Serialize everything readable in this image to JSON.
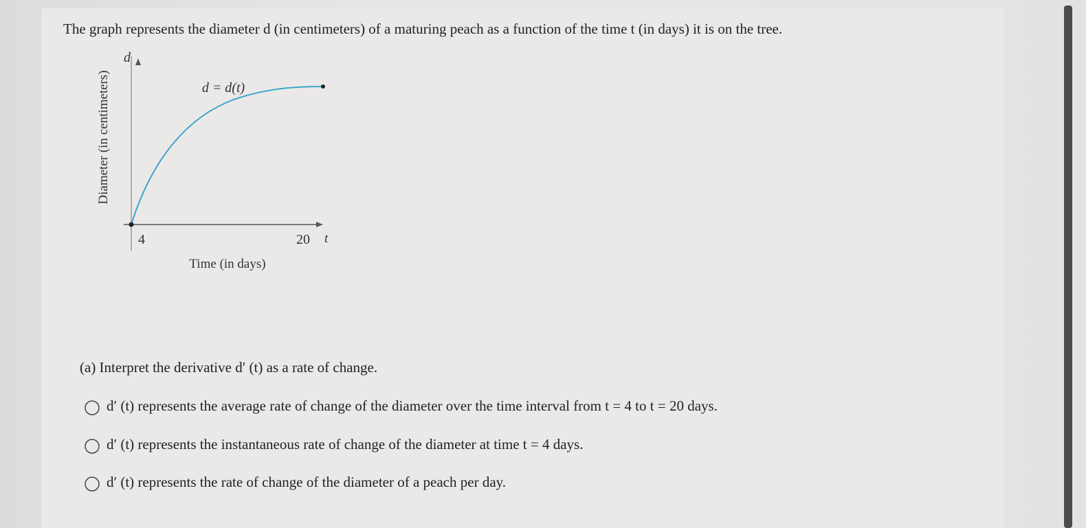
{
  "question": "The graph represents the diameter d (in centimeters) of a maturing peach as a function of the time t (in days) it is on the tree.",
  "graph": {
    "y_axis_letter": "d",
    "x_axis_letter": "t",
    "curve_label": "d = d(t)",
    "y_label": "Diameter (in centimeters)",
    "x_label": "Time (in days)",
    "xticks": [
      4,
      20
    ]
  },
  "part_a": {
    "prompt": "(a) Interpret the derivative d′ (t) as a rate of change.",
    "options": [
      "d′ (t) represents the average rate of change of the diameter over the time interval from t = 4 to t = 20 days.",
      "d′ (t) represents the instantaneous rate of change of the diameter at time t = 4 days.",
      "d′ (t) represents the rate of change of the diameter of a peach per day."
    ]
  }
}
